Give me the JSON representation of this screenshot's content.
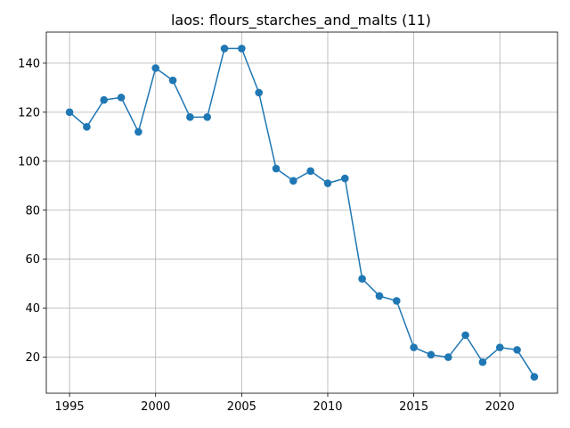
{
  "chart_data": {
    "type": "line",
    "title": "laos: flours_starches_and_malts (11)",
    "xlabel": "",
    "ylabel": "",
    "x": [
      1995,
      1996,
      1997,
      1998,
      1999,
      2000,
      2001,
      2002,
      2003,
      2004,
      2005,
      2006,
      2007,
      2008,
      2009,
      2010,
      2011,
      2012,
      2013,
      2014,
      2015,
      2016,
      2017,
      2018,
      2019,
      2020,
      2021,
      2022
    ],
    "series": [
      {
        "values": [
          120,
          114,
          125,
          126,
          112,
          138,
          133,
          118,
          118,
          146,
          146,
          128,
          97,
          92,
          96,
          91,
          93,
          52,
          45,
          43,
          24,
          21,
          20,
          29,
          18,
          24,
          23,
          12
        ]
      }
    ],
    "xlim": [
      1993.65,
      2023.35
    ],
    "ylim": [
      5.3,
      152.7
    ],
    "xticks": [
      1995,
      2000,
      2005,
      2010,
      2015,
      2020
    ],
    "yticks": [
      20,
      40,
      60,
      80,
      100,
      120,
      140
    ],
    "grid": true,
    "legend": "none",
    "colors": {
      "line": "#1f77b4",
      "grid": "#b0b0b0",
      "axes": "#000000"
    }
  }
}
